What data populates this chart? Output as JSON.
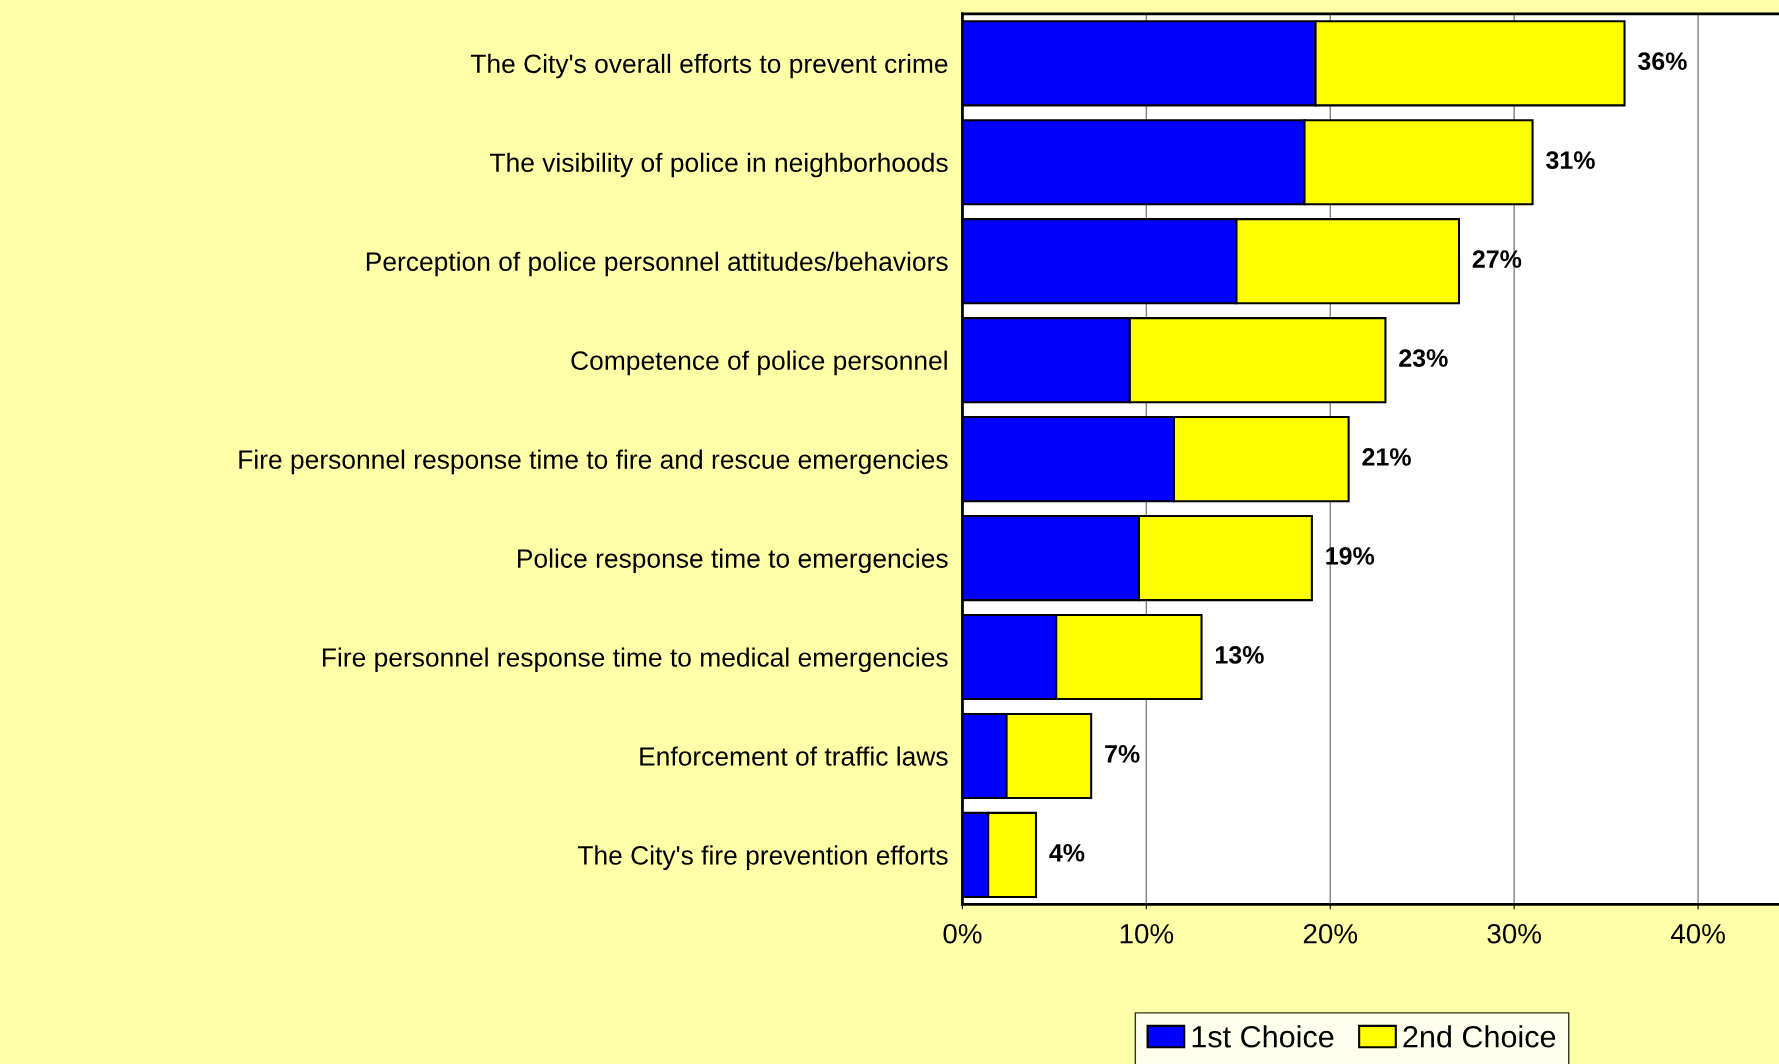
{
  "chart_data": {
    "type": "bar",
    "orientation": "horizontal",
    "stacked": true,
    "categories": [
      "The City's overall efforts to prevent crime",
      "The visibility of police in neighborhoods",
      "Perception of police personnel attitudes/behaviors",
      "Competence of police personnel",
      "Fire personnel response time to fire and rescue emergencies",
      "Police response time to emergencies",
      "Fire personnel response time to medical emergencies",
      "Enforcement of traffic laws",
      "The City's fire prevention efforts"
    ],
    "series": [
      {
        "name": "1st Choice",
        "color": "#0000ff",
        "values": [
          19.2,
          18.6,
          14.9,
          9.1,
          11.5,
          9.6,
          5.1,
          2.4,
          1.4
        ]
      },
      {
        "name": "2nd Choice",
        "color": "#ffff00",
        "values": [
          16.8,
          12.4,
          12.1,
          13.9,
          9.5,
          9.4,
          7.9,
          4.6,
          2.6
        ]
      }
    ],
    "totals": [
      "36%",
      "31%",
      "27%",
      "23%",
      "21%",
      "19%",
      "13%",
      "7%",
      "4%"
    ],
    "xlim": [
      0,
      44.4
    ],
    "xticks": [
      {
        "value": 0,
        "label": "0%"
      },
      {
        "value": 10,
        "label": "10%"
      },
      {
        "value": 20,
        "label": "20%"
      },
      {
        "value": 30,
        "label": "30%"
      },
      {
        "value": 40,
        "label": "40%"
      }
    ],
    "grid": "x",
    "legend": "bottom"
  }
}
